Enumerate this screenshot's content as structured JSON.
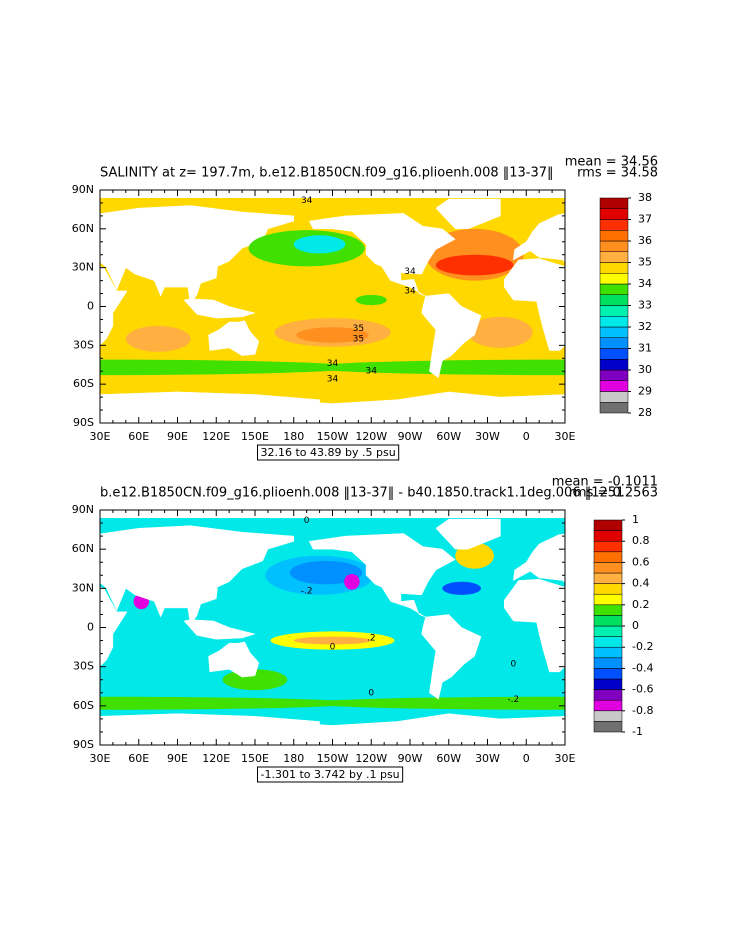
{
  "x_tick_labels": [
    "30E",
    "60E",
    "90E",
    "120E",
    "150E",
    "180",
    "150W",
    "120W",
    "90W",
    "60W",
    "30W",
    "0",
    "30E"
  ],
  "y_tick_labels": [
    "90N",
    "60N",
    "30N",
    "0",
    "30S",
    "60S",
    "90S"
  ],
  "panels": [
    {
      "title": "SALINITY at z= 197.7m, b.e12.B1850CN.f09_g16.plioenh.008 ‖13-37‖",
      "mean": "mean = 34.56",
      "rms": "rms = 34.58",
      "range_note": "32.16 to 43.89 by .5 psu",
      "colorbar": {
        "levels": [
          28,
          29,
          30,
          31,
          32,
          33,
          34,
          35,
          36,
          37,
          38
        ],
        "colors": [
          "#707070",
          "#c8c8c8",
          "#e000e0",
          "#8000c0",
          "#0000c8",
          "#0050ff",
          "#0090ff",
          "#00c0ff",
          "#00e8e8",
          "#00f0b0",
          "#00e060",
          "#40e000",
          "#ffff00",
          "#ffd800",
          "#ffb040",
          "#ff9020",
          "#ff7000",
          "#ff3000",
          "#e00000",
          "#b00000"
        ]
      },
      "contour_labels": [
        "34",
        "34",
        "34",
        "35",
        "35",
        "34",
        "34",
        "34"
      ]
    },
    {
      "title": "b.e12.B1850CN.f09_g16.plioenh.008 ‖13-37‖ - b40.1850.track1.1deg.006 ‖1251",
      "mean": "mean = -0.1011",
      "rms": "rms = 0.2563",
      "range_note": "-1.301 to 3.742 by .1 psu",
      "colorbar": {
        "levels": [
          -1,
          -0.8,
          -0.6,
          -0.4,
          -0.2,
          0,
          0.2,
          0.4,
          0.6,
          0.8,
          1
        ],
        "colors": [
          "#707070",
          "#c8c8c8",
          "#e000e0",
          "#8000c0",
          "#0000c8",
          "#0050ff",
          "#0090ff",
          "#00c0ff",
          "#00e8e8",
          "#00f0b0",
          "#00e060",
          "#40e000",
          "#ffff00",
          "#ffd800",
          "#ffb040",
          "#ff9020",
          "#ff7000",
          "#ff3000",
          "#e00000",
          "#b00000"
        ]
      },
      "contour_labels": [
        "0",
        "0",
        "-.2",
        ".2",
        "0",
        "0",
        "-.2"
      ]
    }
  ]
}
